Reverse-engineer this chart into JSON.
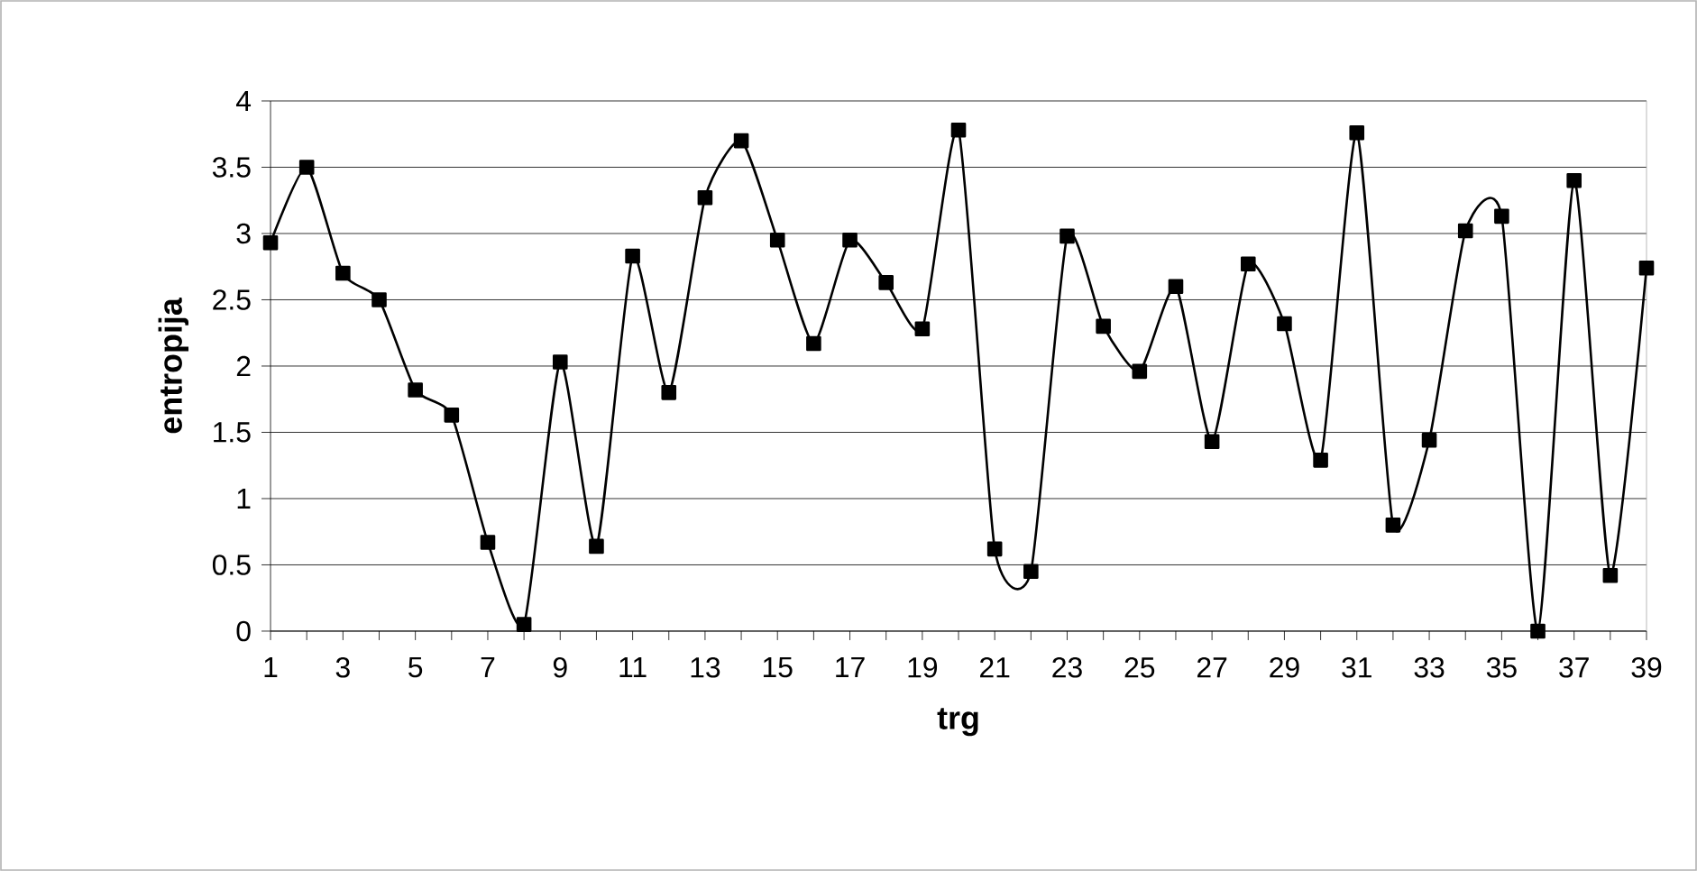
{
  "chart_data": {
    "type": "line",
    "xlabel": "trg",
    "ylabel": "entropija",
    "categories": [
      "1",
      null,
      "3",
      null,
      "5",
      null,
      "7",
      null,
      "9",
      null,
      "11",
      null,
      "13",
      null,
      "15",
      null,
      "17",
      null,
      "19",
      null,
      "21",
      null,
      "23",
      null,
      "25",
      null,
      "27",
      null,
      "29",
      null,
      "31",
      null,
      "33",
      null,
      "35",
      null,
      "37",
      null,
      "39"
    ],
    "series": [
      {
        "color": "#000000",
        "values": [
          2.93,
          3.5,
          2.7,
          2.5,
          1.82,
          1.63,
          0.67,
          0.05,
          2.03,
          0.64,
          2.83,
          1.8,
          3.27,
          3.7,
          2.95,
          2.17,
          2.95,
          2.63,
          2.28,
          3.78,
          0.62,
          0.45,
          2.98,
          2.3,
          1.96,
          2.6,
          1.43,
          2.77,
          2.32,
          1.29,
          3.76,
          0.8,
          1.44,
          3.02,
          3.13,
          0.0,
          3.4,
          0.42,
          2.74
        ]
      }
    ],
    "ylim": [
      0,
      4
    ],
    "yticks": [
      0,
      0.5,
      1,
      1.5,
      2,
      2.5,
      3,
      3.5,
      4
    ],
    "grid": "y",
    "marker": "square",
    "line_style": "solid"
  }
}
